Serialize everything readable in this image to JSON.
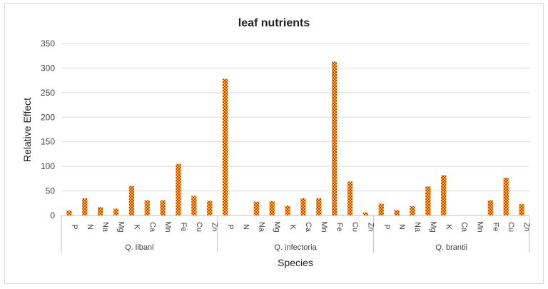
{
  "chart_data": {
    "type": "bar",
    "title": "leaf nutrients",
    "xlabel": "Species",
    "ylabel": "Relative Effect",
    "ylim": [
      0,
      350
    ],
    "yticks": [
      0,
      50,
      100,
      150,
      200,
      250,
      300,
      350
    ],
    "grid": true,
    "legend": "none",
    "bar_color": "#e8201c",
    "bar_pattern_color": "#f5d60a",
    "groups": [
      {
        "name": "Q. libani",
        "categories": [
          "P",
          "N",
          "Na",
          "Mg",
          "K",
          "Ca",
          "Mn",
          "Fe",
          "Cu",
          "Zn"
        ],
        "values": [
          10,
          35,
          17,
          14,
          60,
          31,
          31,
          105,
          40,
          30
        ]
      },
      {
        "name": "Q. infectoria",
        "categories": [
          "P",
          "N",
          "Na",
          "Mg",
          "K",
          "Ca",
          "Mn",
          "Fe",
          "Cu",
          "Zn"
        ],
        "values": [
          278,
          0,
          28,
          29,
          20,
          35,
          35,
          313,
          69,
          6
        ]
      },
      {
        "name": "Q. brantii",
        "categories": [
          "P",
          "N",
          "Na",
          "Mg",
          "K",
          "Ca",
          "Mn",
          "Fe",
          "Cu",
          "Zn"
        ],
        "values": [
          24,
          11,
          19,
          59,
          82,
          0,
          0,
          31,
          77,
          23
        ]
      }
    ]
  }
}
